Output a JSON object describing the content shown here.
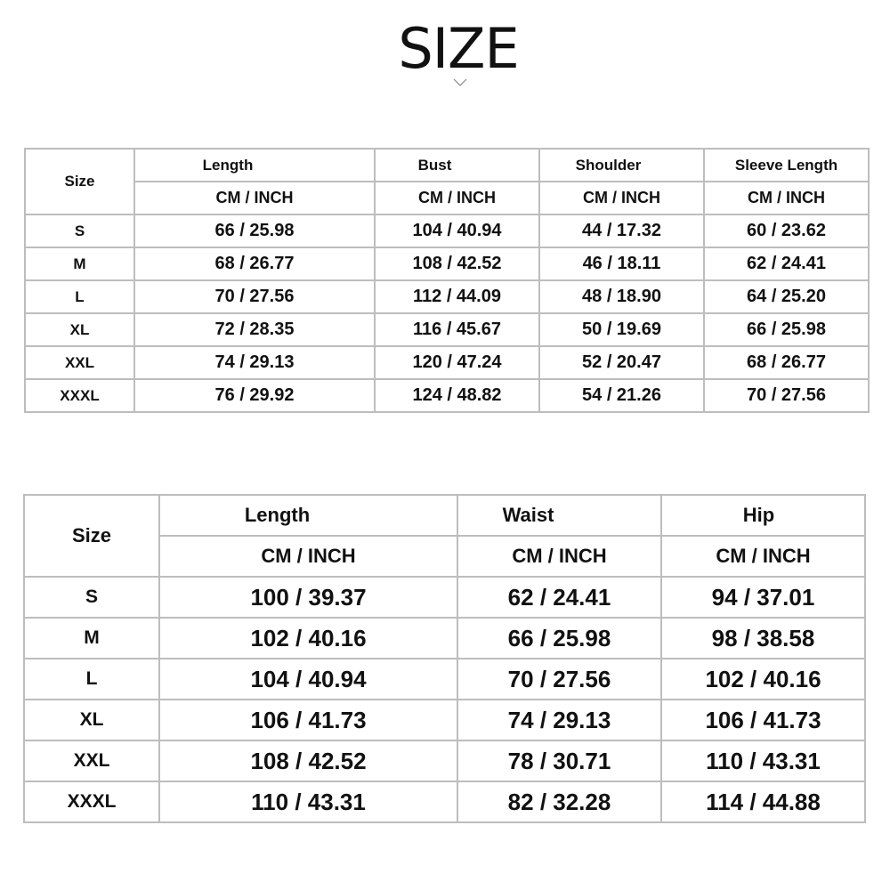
{
  "title": "SIZE",
  "icons": {
    "below_title": "chevron-down-icon"
  },
  "tables": [
    {
      "size_header": "Size",
      "columns": [
        "Length",
        "Bust",
        "Shoulder",
        "Sleeve Length"
      ],
      "unit_label": "CM / INCH",
      "rows": [
        {
          "size": "S",
          "values": [
            "66 / 25.98",
            "104 / 40.94",
            "44 / 17.32",
            "60 / 23.62"
          ]
        },
        {
          "size": "M",
          "values": [
            "68 / 26.77",
            "108 / 42.52",
            "46 / 18.11",
            "62 / 24.41"
          ]
        },
        {
          "size": "L",
          "values": [
            "70 / 27.56",
            "112 / 44.09",
            "48 / 18.90",
            "64 / 25.20"
          ]
        },
        {
          "size": "XL",
          "values": [
            "72 / 28.35",
            "116 / 45.67",
            "50 / 19.69",
            "66 / 25.98"
          ]
        },
        {
          "size": "XXL",
          "values": [
            "74 / 29.13",
            "120 / 47.24",
            "52 / 20.47",
            "68 / 26.77"
          ]
        },
        {
          "size": "XXXL",
          "values": [
            "76 / 29.92",
            "124 / 48.82",
            "54 / 21.26",
            "70 / 27.56"
          ]
        }
      ]
    },
    {
      "size_header": "Size",
      "columns": [
        "Length",
        "Waist",
        "Hip"
      ],
      "unit_label": "CM / INCH",
      "rows": [
        {
          "size": "S",
          "values": [
            "100 / 39.37",
            "62 / 24.41",
            "94 / 37.01"
          ]
        },
        {
          "size": "M",
          "values": [
            "102 / 40.16",
            "66 / 25.98",
            "98 / 38.58"
          ]
        },
        {
          "size": "L",
          "values": [
            "104 / 40.94",
            "70 / 27.56",
            "102 / 40.16"
          ]
        },
        {
          "size": "XL",
          "values": [
            "106 / 41.73",
            "74 / 29.13",
            "106 / 41.73"
          ]
        },
        {
          "size": "XXL",
          "values": [
            "108 / 42.52",
            "78 / 30.71",
            "110 / 43.31"
          ]
        },
        {
          "size": "XXXL",
          "values": [
            "110 / 43.31",
            "82 / 32.28",
            "114 / 44.88"
          ]
        }
      ]
    }
  ]
}
